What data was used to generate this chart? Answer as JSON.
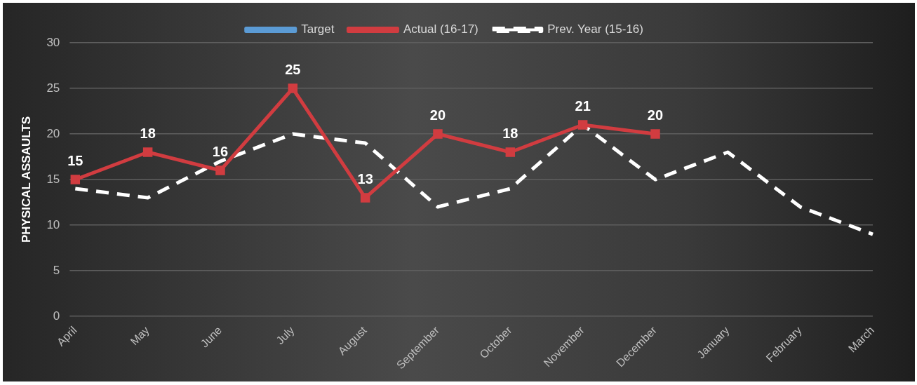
{
  "chart_data": {
    "type": "line",
    "ylabel": "PHYSICAL ASSAULTS",
    "categories": [
      "April",
      "May",
      "June",
      "July",
      "August",
      "September",
      "October",
      "November",
      "December",
      "January",
      "February",
      "March"
    ],
    "ylim": [
      0,
      30
    ],
    "yticks": [
      0,
      5,
      10,
      15,
      20,
      25,
      30
    ],
    "grid": "y",
    "legend": "top",
    "series": [
      {
        "name": "Target",
        "color": "#5b9bd5",
        "marker": "square",
        "values": [
          null,
          null,
          null,
          null,
          null,
          null,
          null,
          null,
          null,
          null,
          null,
          null
        ]
      },
      {
        "name": "Actual (16-17)",
        "color": "#d13c40",
        "marker": "square",
        "values": [
          15,
          18,
          16,
          25,
          13,
          20,
          18,
          21,
          20,
          null,
          null,
          null
        ],
        "value_labels": [
          "15",
          "18",
          "16",
          "25",
          "13",
          "20",
          "18",
          "21",
          "20",
          null,
          null,
          null
        ]
      },
      {
        "name": "Prev. Year (15-16)",
        "color": "#ffffff",
        "marker": "none",
        "line_style": "dashed",
        "values": [
          14,
          13,
          17,
          20,
          19,
          12,
          14,
          21,
          15,
          18,
          12,
          9
        ]
      }
    ]
  }
}
